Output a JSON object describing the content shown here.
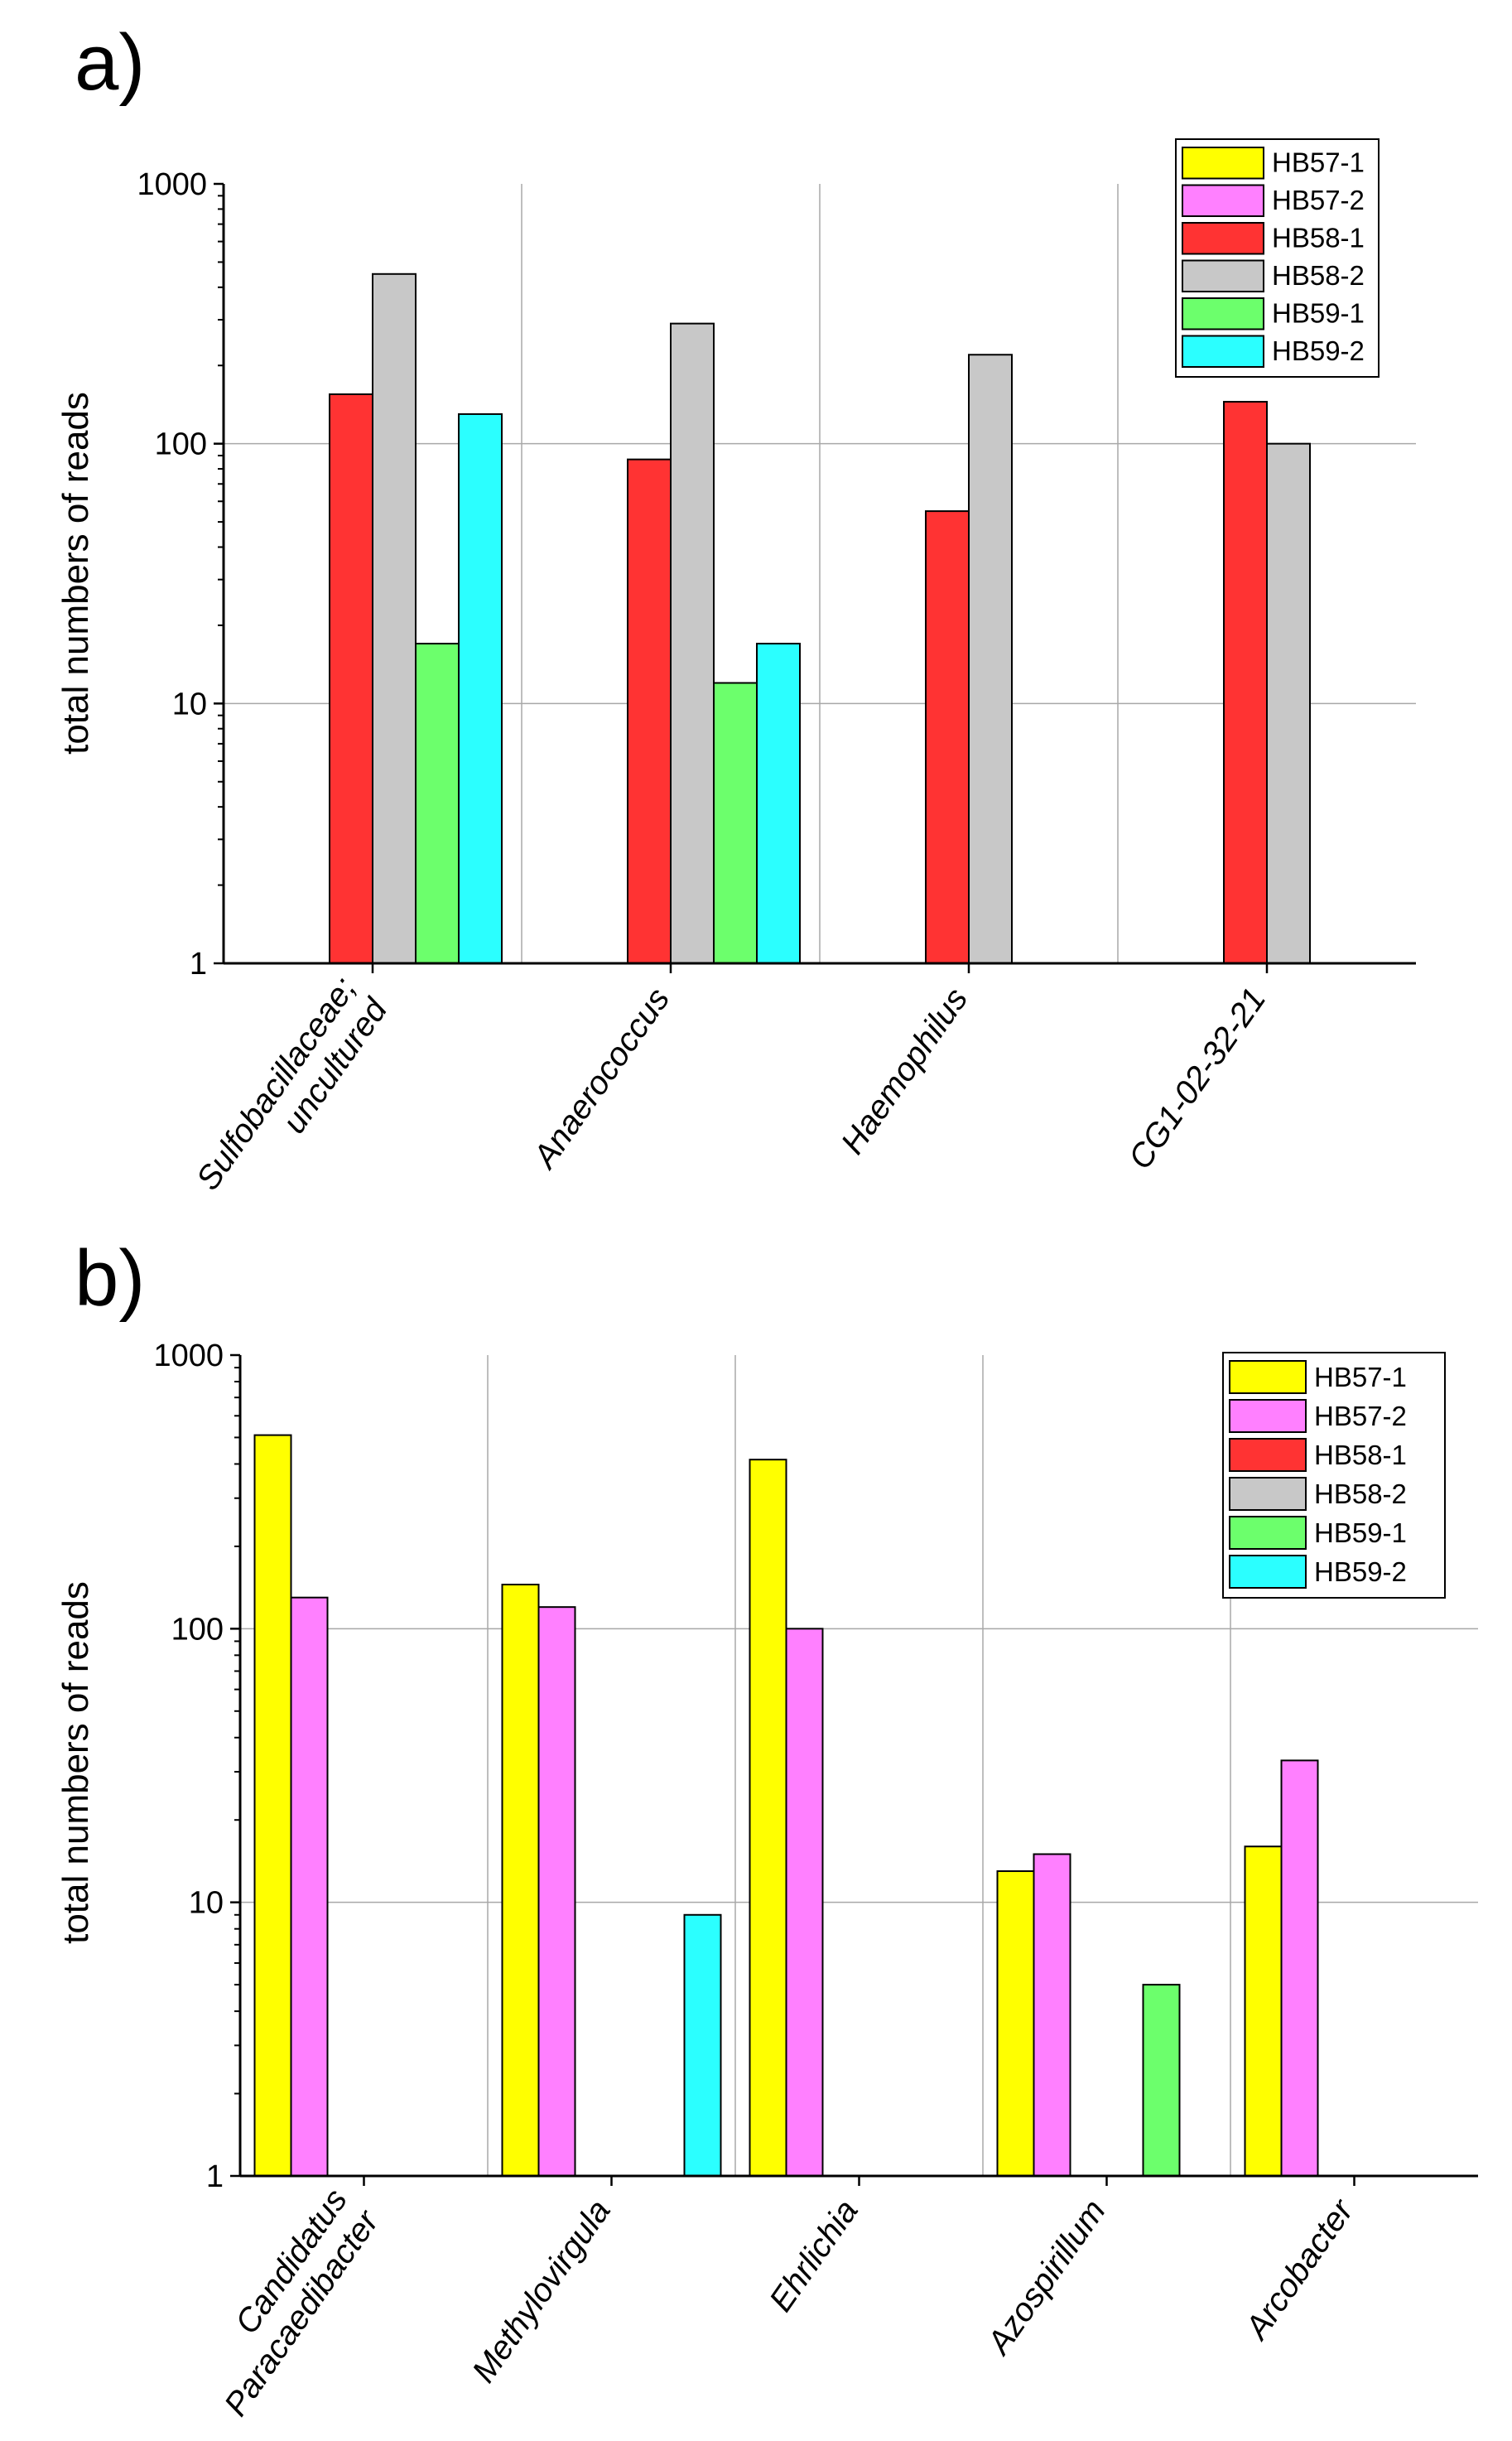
{
  "series_colors": {
    "HB57-1": "#ffff00",
    "HB57-2": "#ff80ff",
    "HB58-1": "#ff3333",
    "HB58-2": "#c8c8c8",
    "HB59-1": "#6cff6c",
    "HB59-2": "#2bffff"
  },
  "chart_data": [
    {
      "panel_label": "a)",
      "type": "bar",
      "scale": "log",
      "ylabel": "total numbers of reads",
      "ylim": [
        1,
        1000
      ],
      "yticks": [
        "1",
        "10",
        "100",
        "1000"
      ],
      "grid": true,
      "legend_position": "top-right",
      "categories": [
        "Sulfobacillaceae; uncultured",
        "Anaerococcus",
        "Haemophilus",
        "CG1-02-32-21"
      ],
      "category_label_lines": [
        [
          "Sulfobacillaceae;",
          "uncultured"
        ],
        [
          "Anaerococcus"
        ],
        [
          "Haemophilus"
        ],
        [
          "CG1-02-32-21"
        ]
      ],
      "series": [
        {
          "name": "HB57-1",
          "values": [
            null,
            null,
            null,
            null
          ]
        },
        {
          "name": "HB57-2",
          "values": [
            null,
            null,
            null,
            null
          ]
        },
        {
          "name": "HB58-1",
          "values": [
            155,
            87,
            55,
            145
          ]
        },
        {
          "name": "HB58-2",
          "values": [
            450,
            290,
            220,
            100
          ]
        },
        {
          "name": "HB59-1",
          "values": [
            17,
            12,
            null,
            null
          ]
        },
        {
          "name": "HB59-2",
          "values": [
            130,
            17,
            null,
            null
          ]
        }
      ]
    },
    {
      "panel_label": "b)",
      "type": "bar",
      "scale": "log",
      "ylabel": "total numbers of reads",
      "ylim": [
        1,
        1000
      ],
      "yticks": [
        "1",
        "10",
        "100",
        "1000"
      ],
      "grid": true,
      "legend_position": "top-right",
      "categories": [
        "Candidatus Paracaedibacter",
        "Methylovirgula",
        "Ehrlichia",
        "Azospirillum",
        "Arcobacter"
      ],
      "category_label_lines": [
        [
          "Candidatus",
          "Paracaedibacter"
        ],
        [
          "Methylovirgula"
        ],
        [
          "Ehrlichia"
        ],
        [
          "Azospirillum"
        ],
        [
          "Arcobacter"
        ]
      ],
      "series": [
        {
          "name": "HB57-1",
          "values": [
            510,
            145,
            415,
            13,
            16
          ]
        },
        {
          "name": "HB57-2",
          "values": [
            130,
            120,
            100,
            15,
            33
          ]
        },
        {
          "name": "HB58-1",
          "values": [
            null,
            null,
            null,
            null,
            null
          ]
        },
        {
          "name": "HB58-2",
          "values": [
            null,
            null,
            null,
            null,
            null
          ]
        },
        {
          "name": "HB59-1",
          "values": [
            null,
            null,
            null,
            5,
            null
          ]
        },
        {
          "name": "HB59-2",
          "values": [
            null,
            9,
            null,
            null,
            null
          ]
        }
      ]
    }
  ]
}
